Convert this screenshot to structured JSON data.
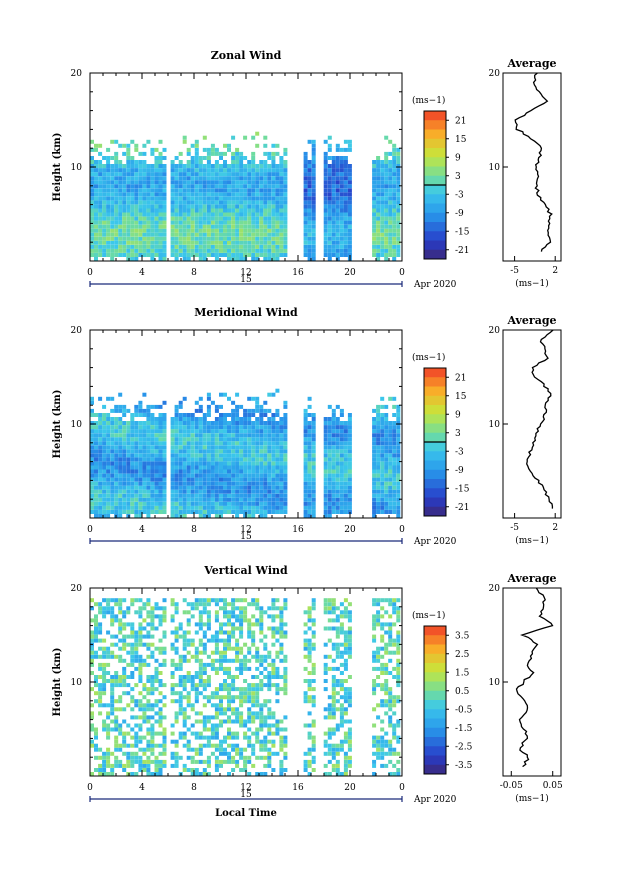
{
  "chart_data": [
    {
      "type": "heatmap",
      "title": "Zonal Wind",
      "ylabel": "Height (km)",
      "y_ticks": [
        "20",
        "10"
      ],
      "x_ticks": [
        "0",
        "4",
        "8",
        "12",
        "16",
        "20",
        "0"
      ],
      "date_day": "15",
      "date_label": "Apr 2020",
      "ylim": [
        0,
        20
      ],
      "xlim": [
        0,
        24
      ],
      "colorbar": {
        "unit": "(ms−1)",
        "ticks": [
          "21",
          "15",
          "9",
          "3",
          "-3",
          "-9",
          "-15",
          "-21"
        ],
        "range": [
          -24,
          24
        ],
        "zero_line": 0
      },
      "average": {
        "title": "Average",
        "x_ticks": [
          "-5",
          "2"
        ],
        "xlabel": "(ms−1)",
        "y_ticks": [
          "20",
          "10"
        ],
        "xlim": [
          -7,
          3
        ],
        "profile": [
          [
            1,
            -0.4
          ],
          [
            2,
            1.0
          ],
          [
            3,
            0.8
          ],
          [
            4,
            1.1
          ],
          [
            5,
            1.2
          ],
          [
            6,
            0.2
          ],
          [
            7,
            -0.9
          ],
          [
            8,
            -1.3
          ],
          [
            9,
            -0.7
          ],
          [
            10,
            -1.2
          ],
          [
            11,
            -0.8
          ],
          [
            12,
            -0.2
          ],
          [
            13,
            -2.0
          ],
          [
            14,
            -4.5
          ],
          [
            15,
            -5.0
          ],
          [
            16,
            -2.0
          ],
          [
            17,
            0.4
          ],
          [
            18,
            -0.8
          ],
          [
            19,
            -1.5
          ],
          [
            20,
            -1.2
          ]
        ],
        "gaps_x": [
          6,
          15,
          17.4
        ],
        "data_top": 13.5
      }
    },
    {
      "type": "heatmap",
      "title": "Meridional Wind",
      "ylabel": "Height (km)",
      "y_ticks": [
        "20",
        "10"
      ],
      "x_ticks": [
        "0",
        "4",
        "8",
        "12",
        "16",
        "20",
        "0"
      ],
      "date_day": "15",
      "date_label": "Apr 2020",
      "ylim": [
        0,
        20
      ],
      "xlim": [
        0,
        24
      ],
      "colorbar": {
        "unit": "(ms−1)",
        "ticks": [
          "21",
          "15",
          "9",
          "3",
          "-3",
          "-9",
          "-15",
          "-21"
        ],
        "range": [
          -24,
          24
        ],
        "zero_line": 0
      },
      "average": {
        "title": "Average",
        "x_ticks": [
          "-5",
          "2"
        ],
        "xlabel": "(ms−1)",
        "y_ticks": [
          "20",
          "10"
        ],
        "xlim": [
          -7,
          3
        ],
        "profile": [
          [
            1,
            1.4
          ],
          [
            2,
            1.0
          ],
          [
            3,
            0.2
          ],
          [
            4,
            -1.0
          ],
          [
            5,
            -2.2
          ],
          [
            6,
            -3.0
          ],
          [
            7,
            -2.4
          ],
          [
            8,
            -1.6
          ],
          [
            9,
            -1.2
          ],
          [
            10,
            -0.6
          ],
          [
            11,
            0.3
          ],
          [
            12,
            0.1
          ],
          [
            13,
            1.2
          ],
          [
            14,
            0.3
          ],
          [
            15,
            -1.5
          ],
          [
            16,
            -2.1
          ],
          [
            17,
            0.6
          ],
          [
            18,
            0.4
          ],
          [
            19,
            -0.5
          ],
          [
            20,
            1.5
          ]
        ],
        "gaps_x": [
          6,
          15,
          17.4
        ],
        "data_top": 13.5
      }
    },
    {
      "type": "heatmap",
      "title": "Vertical Wind",
      "ylabel": "Height (km)",
      "xlabel": "Local Time",
      "y_ticks": [
        "20",
        "10"
      ],
      "x_ticks": [
        "0",
        "4",
        "8",
        "12",
        "16",
        "20",
        "0"
      ],
      "date_day": "15",
      "date_label": "Apr 2020",
      "ylim": [
        0,
        20
      ],
      "xlim": [
        0,
        24
      ],
      "colorbar": {
        "unit": "(ms−1)",
        "ticks": [
          "3.5",
          "2.5",
          "1.5",
          "0.5",
          "-0.5",
          "-1.5",
          "-2.5",
          "-3.5"
        ],
        "range": [
          -4,
          4
        ],
        "zero_line": null
      },
      "average": {
        "title": "Average",
        "x_ticks": [
          "-0.05",
          "0.05"
        ],
        "xlabel": "(ms−1)",
        "y_ticks": [
          "20",
          "10"
        ],
        "xlim": [
          -0.07,
          0.07
        ],
        "profile": [
          [
            1,
            -0.02
          ],
          [
            2,
            -0.01
          ],
          [
            3,
            -0.03
          ],
          [
            4,
            -0.01
          ],
          [
            5,
            -0.02
          ],
          [
            6,
            -0.03
          ],
          [
            7,
            -0.01
          ],
          [
            8,
            -0.02
          ],
          [
            9,
            -0.04
          ],
          [
            10,
            -0.02
          ],
          [
            11,
            0.0
          ],
          [
            12,
            -0.01
          ],
          [
            13,
            0.0
          ],
          [
            14,
            0.01
          ],
          [
            15,
            -0.02
          ],
          [
            16,
            0.05
          ],
          [
            17,
            0.02
          ],
          [
            18,
            0.03
          ],
          [
            19,
            0.03
          ],
          [
            20,
            0.01
          ]
        ],
        "gaps_x": [
          6,
          15,
          17.4
        ],
        "data_top": 18.5
      }
    }
  ]
}
